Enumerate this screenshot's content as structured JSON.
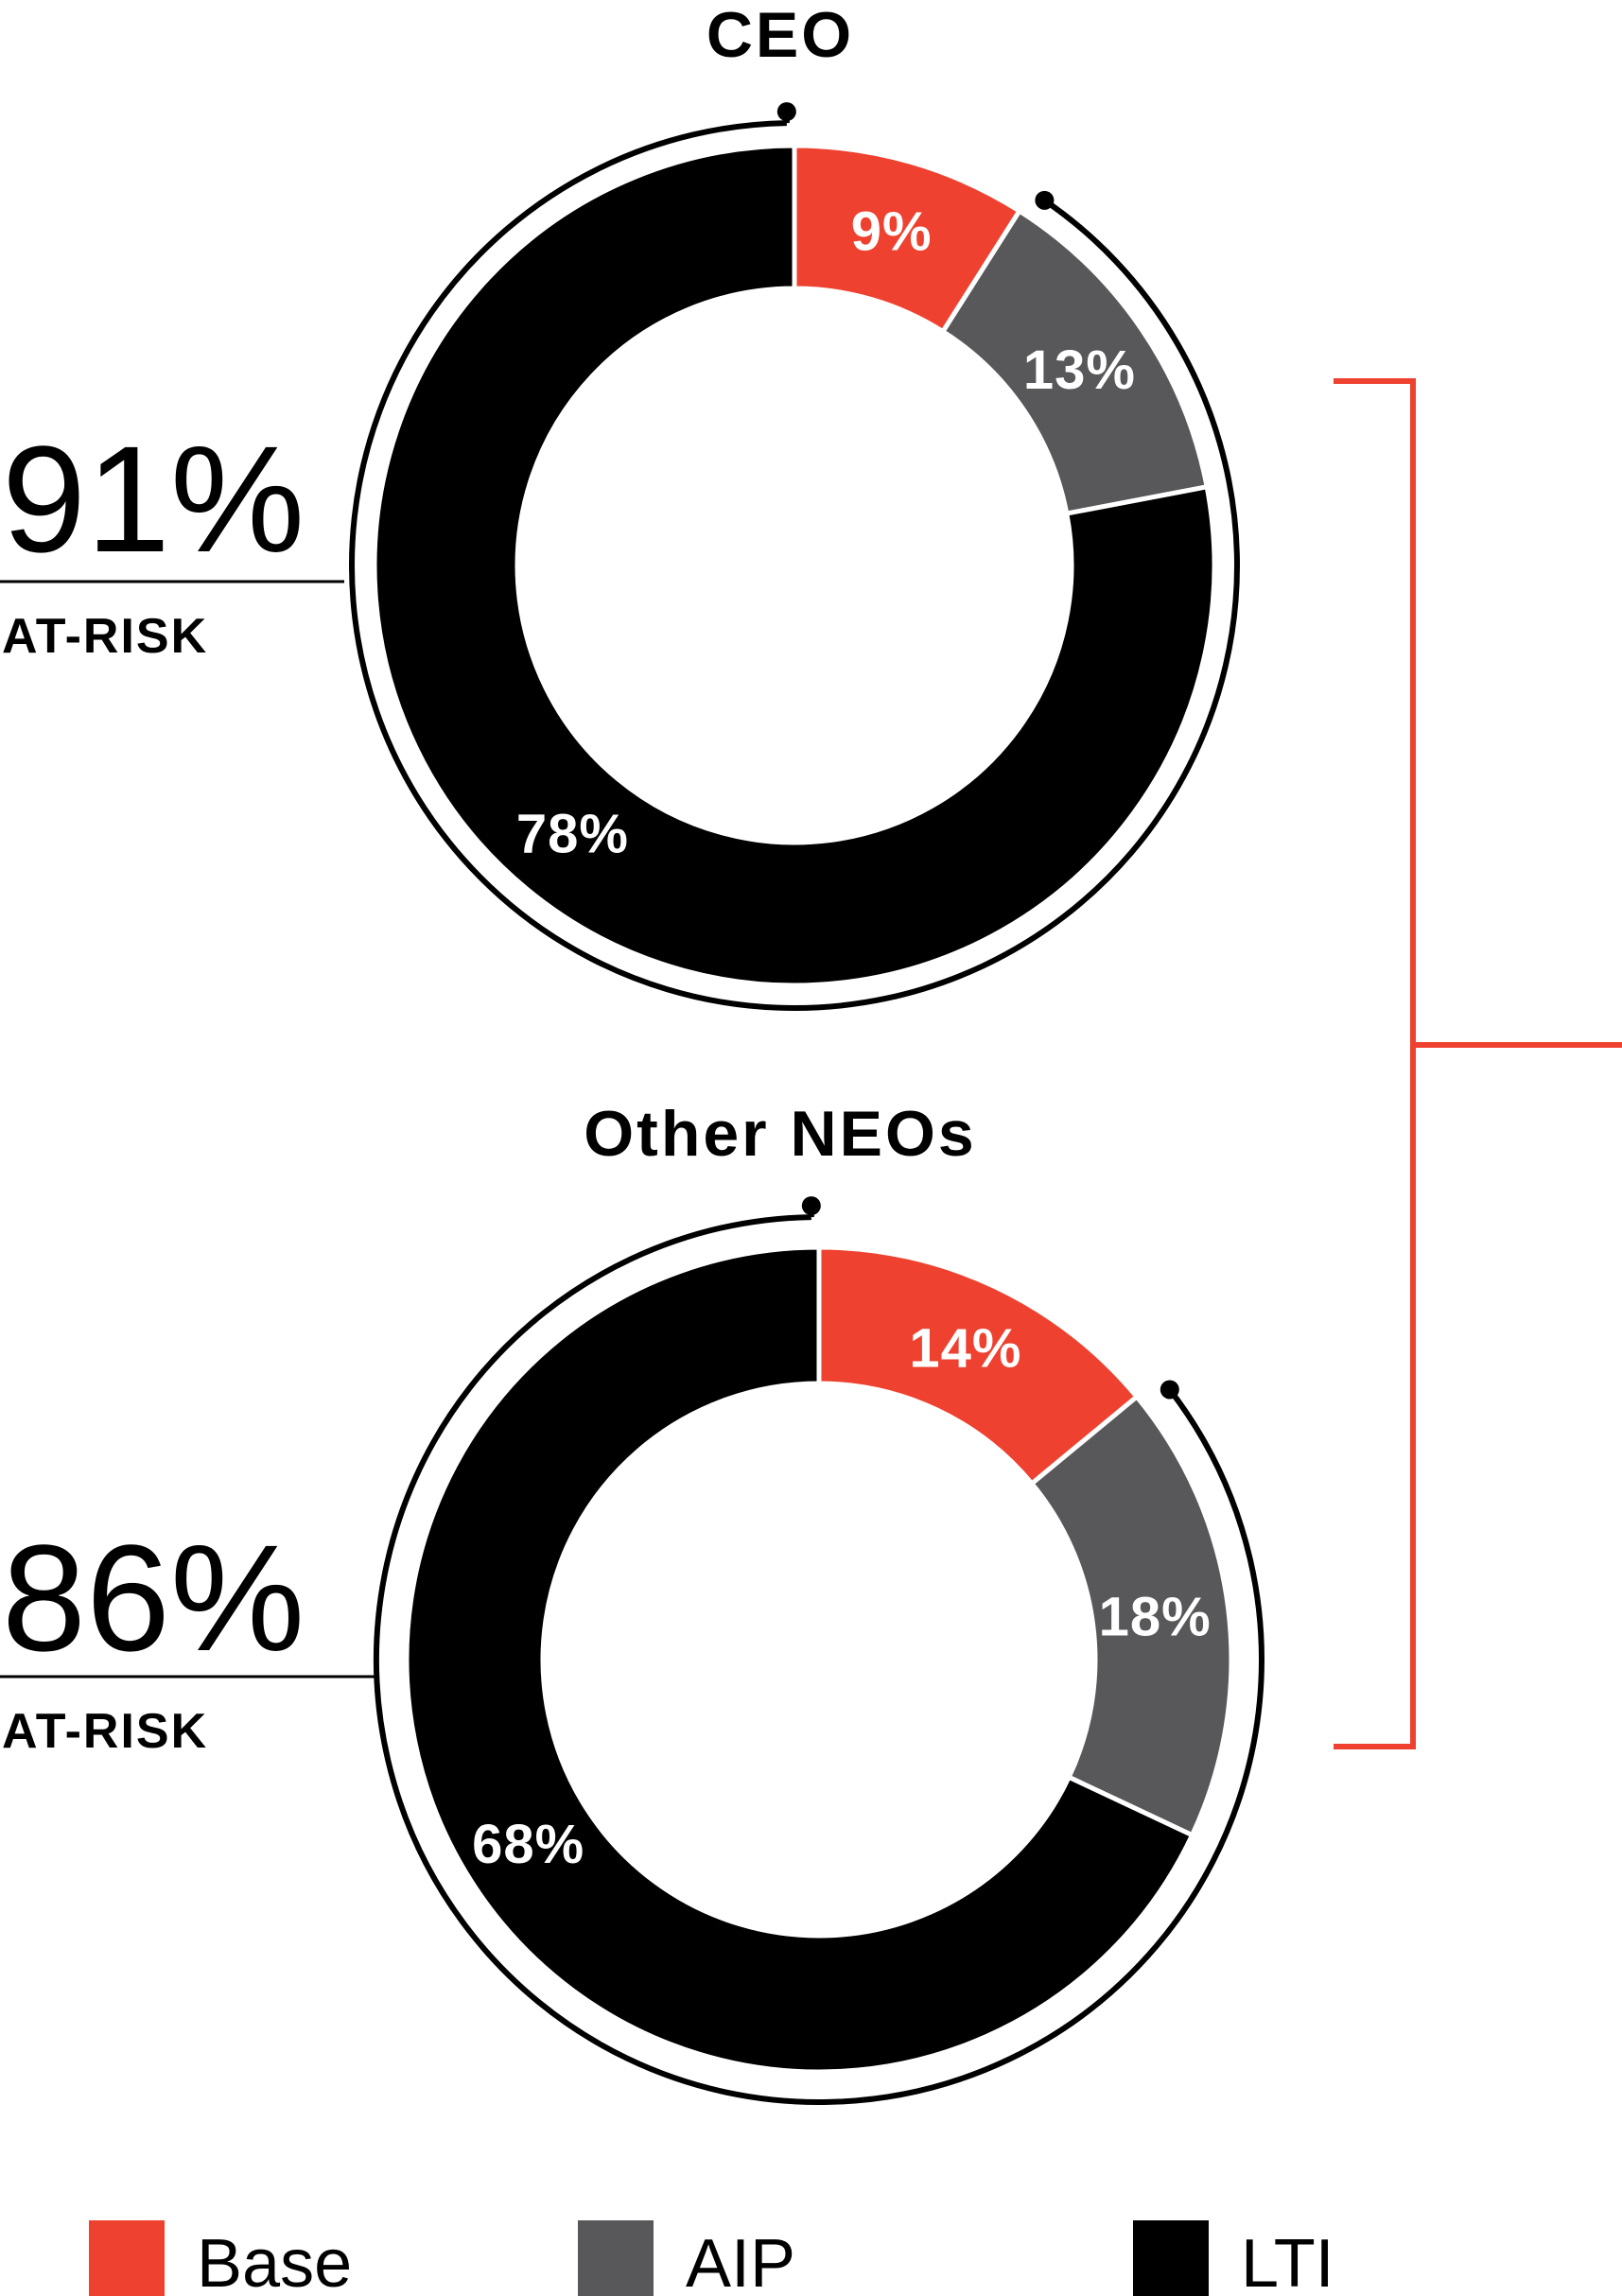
{
  "colors": {
    "base": "#ee4130",
    "aip": "#58585a",
    "lti": "#000000",
    "bracket": "#ee4130"
  },
  "chart_data": [
    {
      "type": "pie",
      "variant": "donut",
      "title": "CEO",
      "categories": [
        "Base",
        "AIP",
        "LTI"
      ],
      "values": [
        9,
        13,
        78
      ],
      "labels": [
        "9%",
        "13%",
        "78%"
      ],
      "at_risk": {
        "value": "91%",
        "label": "AT-RISK"
      }
    },
    {
      "type": "pie",
      "variant": "donut",
      "title": "Other NEOs",
      "categories": [
        "Base",
        "AIP",
        "LTI"
      ],
      "values": [
        14,
        18,
        68
      ],
      "labels": [
        "14%",
        "18%",
        "68%"
      ],
      "at_risk": {
        "value": "86%",
        "label": "AT-RISK"
      }
    }
  ],
  "legend": [
    {
      "label": "Base",
      "color": "#ee4130"
    },
    {
      "label": "AIP",
      "color": "#58585a"
    },
    {
      "label": "LTI",
      "color": "#000000"
    }
  ]
}
